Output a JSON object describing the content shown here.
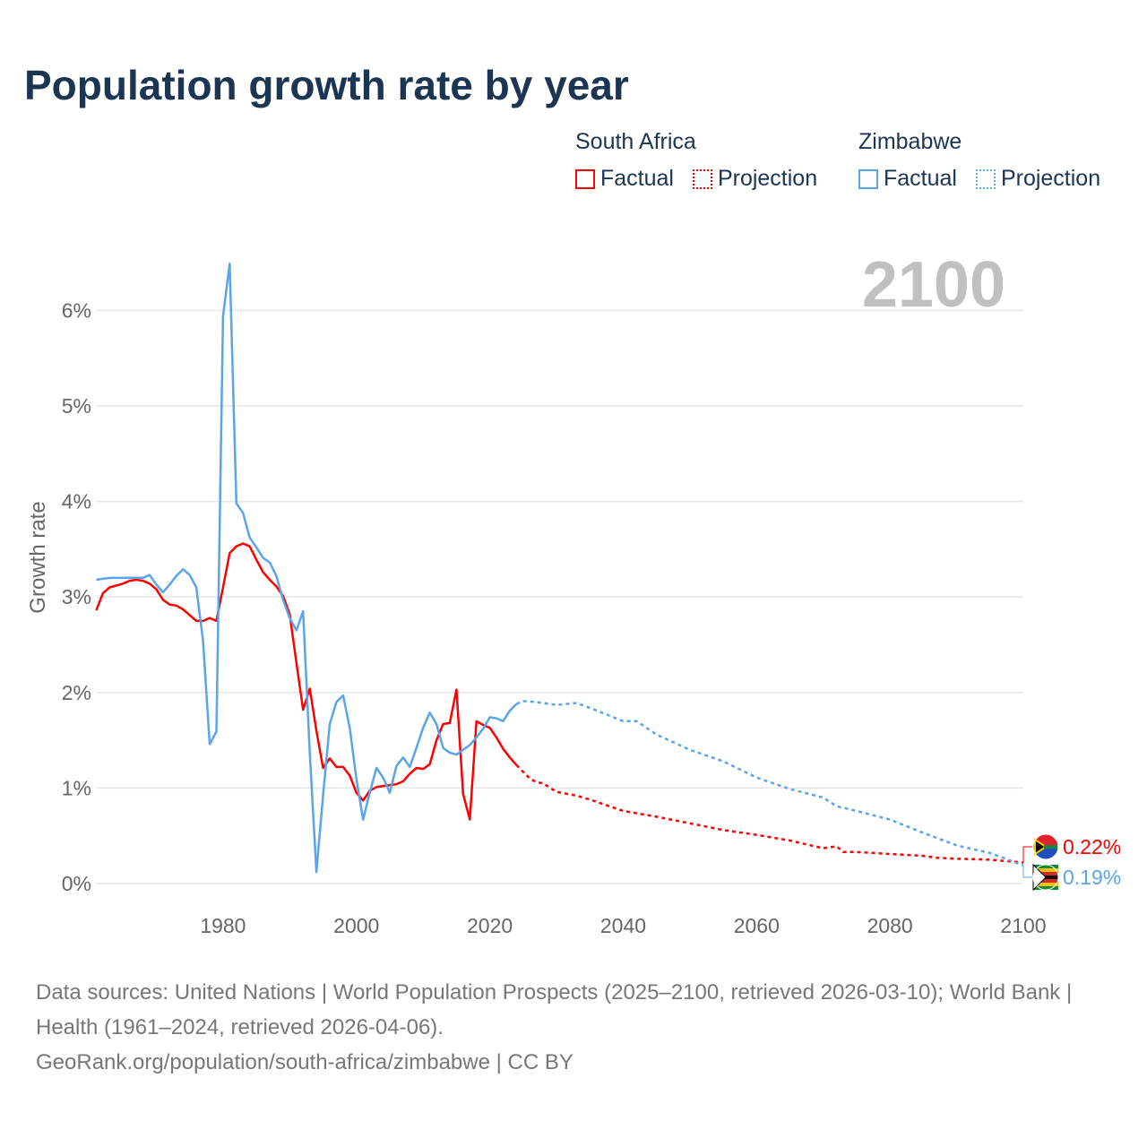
{
  "title": "Population growth rate by year",
  "legend": {
    "groups": [
      {
        "country": "South Africa",
        "factual": "Factual",
        "projection": "Projection",
        "color": "#ff0000"
      },
      {
        "country": "Zimbabwe",
        "factual": "Factual",
        "projection": "Projection",
        "color": "#5aa5ea"
      }
    ]
  },
  "chart_data": {
    "type": "line",
    "title": "Population growth rate by year",
    "xlabel": "",
    "ylabel": "Growth rate",
    "xlim": [
      1961,
      2100
    ],
    "ylim": [
      0,
      6.5
    ],
    "x_ticks": [
      1980,
      2000,
      2020,
      2040,
      2060,
      2080,
      2100
    ],
    "x_tick_labels": [
      "1980",
      "2000",
      "2020",
      "2040",
      "2060",
      "2080",
      "2100"
    ],
    "y_ticks": [
      0,
      1,
      2,
      3,
      4,
      5,
      6
    ],
    "y_tick_labels": [
      "0%",
      "1%",
      "2%",
      "3%",
      "4%",
      "5%",
      "6%"
    ],
    "grid": true,
    "year_label": "2100",
    "series": [
      {
        "name": "South Africa",
        "kind": "Factual",
        "color": "#ff0000",
        "dash": false,
        "x": [
          1961,
          1962,
          1963,
          1964,
          1965,
          1966,
          1967,
          1968,
          1969,
          1970,
          1971,
          1972,
          1973,
          1974,
          1975,
          1976,
          1977,
          1978,
          1979,
          1980,
          1981,
          1982,
          1983,
          1984,
          1985,
          1986,
          1987,
          1988,
          1989,
          1990,
          1991,
          1992,
          1993,
          1994,
          1995,
          1996,
          1997,
          1998,
          1999,
          2000,
          2001,
          2002,
          2003,
          2004,
          2005,
          2006,
          2007,
          2008,
          2009,
          2010,
          2011,
          2012,
          2013,
          2014,
          2015,
          2016,
          2017,
          2018,
          2019,
          2020,
          2021,
          2022,
          2023,
          2024
        ],
        "y": [
          2.86,
          3.04,
          3.1,
          3.12,
          3.14,
          3.17,
          3.18,
          3.17,
          3.14,
          3.08,
          2.97,
          2.92,
          2.91,
          2.87,
          2.81,
          2.75,
          2.75,
          2.78,
          2.75,
          3.1,
          3.46,
          3.53,
          3.56,
          3.53,
          3.39,
          3.26,
          3.18,
          3.11,
          3.01,
          2.82,
          2.31,
          1.82,
          2.04,
          1.6,
          1.21,
          1.31,
          1.22,
          1.22,
          1.13,
          0.95,
          0.87,
          0.97,
          1.01,
          1.02,
          1.03,
          1.04,
          1.07,
          1.15,
          1.21,
          1.2,
          1.25,
          1.5,
          1.67,
          1.68,
          2.03,
          0.94,
          0.67,
          1.7,
          1.66,
          1.63,
          1.53,
          1.41,
          1.32,
          1.24
        ]
      },
      {
        "name": "South Africa",
        "kind": "Projection",
        "color": "#ff0000",
        "dash": true,
        "x": [
          2024,
          2025,
          2026,
          2027,
          2028,
          2030,
          2033,
          2035,
          2040,
          2045,
          2050,
          2055,
          2060,
          2065,
          2070,
          2072,
          2073,
          2075,
          2080,
          2085,
          2087,
          2090,
          2095,
          2100
        ],
        "y": [
          1.24,
          1.17,
          1.1,
          1.06,
          1.05,
          0.96,
          0.92,
          0.88,
          0.76,
          0.7,
          0.63,
          0.56,
          0.51,
          0.45,
          0.37,
          0.39,
          0.33,
          0.33,
          0.31,
          0.29,
          0.27,
          0.26,
          0.25,
          0.22
        ]
      },
      {
        "name": "Zimbabwe",
        "kind": "Factual",
        "color": "#5aa5ea",
        "dash": false,
        "x": [
          1961,
          1962,
          1963,
          1964,
          1965,
          1966,
          1967,
          1968,
          1969,
          1970,
          1971,
          1972,
          1973,
          1974,
          1975,
          1976,
          1977,
          1978,
          1979,
          1980,
          1981,
          1982,
          1983,
          1984,
          1985,
          1986,
          1987,
          1988,
          1989,
          1990,
          1991,
          1992,
          1993,
          1994,
          1995,
          1996,
          1997,
          1998,
          1999,
          2000,
          2001,
          2002,
          2003,
          2004,
          2005,
          2006,
          2007,
          2008,
          2009,
          2010,
          2011,
          2012,
          2013,
          2014,
          2015,
          2016,
          2017,
          2018,
          2019,
          2020,
          2021,
          2022,
          2023,
          2024
        ],
        "y": [
          3.18,
          3.19,
          3.2,
          3.2,
          3.2,
          3.2,
          3.2,
          3.2,
          3.23,
          3.13,
          3.05,
          3.13,
          3.22,
          3.29,
          3.23,
          3.1,
          2.54,
          1.46,
          1.59,
          5.94,
          6.49,
          3.98,
          3.88,
          3.62,
          3.52,
          3.41,
          3.36,
          3.22,
          2.97,
          2.78,
          2.65,
          2.85,
          1.37,
          0.12,
          0.92,
          1.67,
          1.9,
          1.97,
          1.63,
          1.09,
          0.67,
          0.95,
          1.21,
          1.11,
          0.95,
          1.23,
          1.32,
          1.22,
          1.42,
          1.63,
          1.79,
          1.67,
          1.42,
          1.37,
          1.35,
          1.4,
          1.45,
          1.53,
          1.62,
          1.74,
          1.73,
          1.7,
          1.81,
          1.88
        ]
      },
      {
        "name": "Zimbabwe",
        "kind": "Projection",
        "color": "#5aa5ea",
        "dash": true,
        "x": [
          2024,
          2025,
          2027,
          2030,
          2033,
          2035,
          2040,
          2042,
          2045,
          2050,
          2055,
          2060,
          2065,
          2070,
          2072,
          2075,
          2080,
          2085,
          2090,
          2095,
          2100
        ],
        "y": [
          1.88,
          1.91,
          1.9,
          1.87,
          1.89,
          1.84,
          1.7,
          1.7,
          1.56,
          1.4,
          1.28,
          1.11,
          0.99,
          0.9,
          0.81,
          0.76,
          0.67,
          0.53,
          0.4,
          0.32,
          0.19
        ]
      }
    ],
    "end_labels": [
      {
        "country": "South Africa",
        "value": "0.22%",
        "color": "#ff0000"
      },
      {
        "country": "Zimbabwe",
        "value": "0.19%",
        "color": "#5aa5ea"
      }
    ]
  },
  "footer": {
    "sources": "Data sources: United Nations | World Population Prospects (2025–2100, retrieved 2026-03-10); World Bank | Health (1961–2024, retrieved 2026-04-06).",
    "link": "GeoRank.org/population/south-africa/zimbabwe | CC BY"
  }
}
